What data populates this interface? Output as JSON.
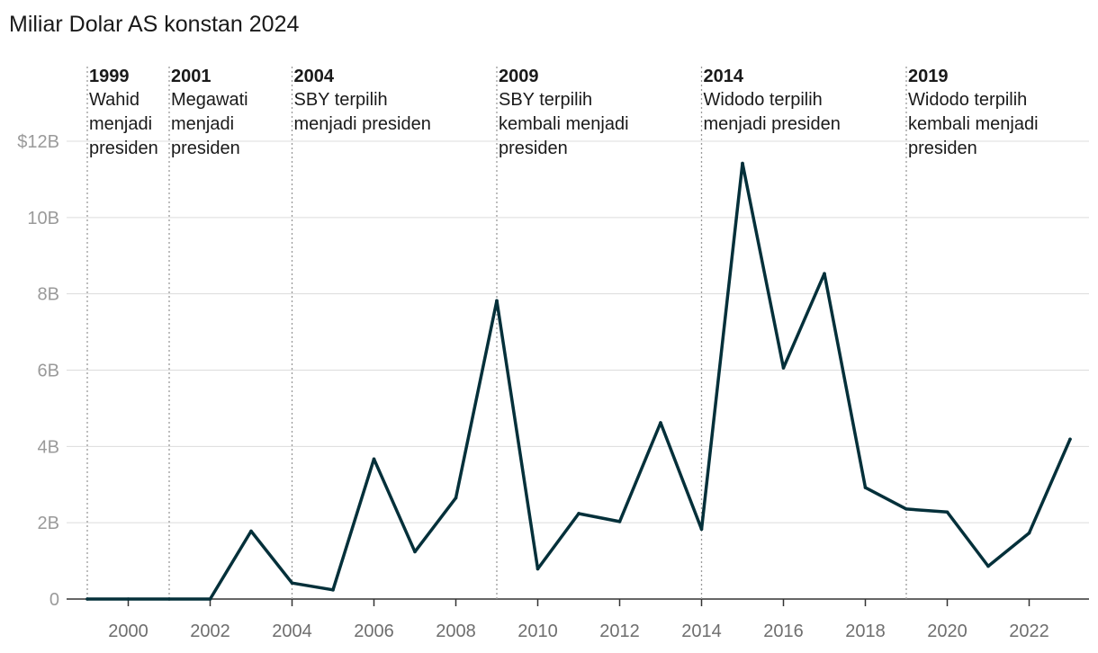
{
  "chart_data": {
    "type": "line",
    "title": "Miliar Dolar AS konstan 2024",
    "xlabel": "",
    "ylabel": "",
    "ylim": [
      0,
      12
    ],
    "xlim": [
      1999,
      2023
    ],
    "y_ticks": [
      {
        "value": 0,
        "label": "0"
      },
      {
        "value": 2,
        "label": "2B"
      },
      {
        "value": 4,
        "label": "4B"
      },
      {
        "value": 6,
        "label": "6B"
      },
      {
        "value": 8,
        "label": "8B"
      },
      {
        "value": 10,
        "label": "10B"
      },
      {
        "value": 12,
        "label": "$12B"
      }
    ],
    "x_ticks": [
      {
        "value": 2000,
        "label": "2000"
      },
      {
        "value": 2002,
        "label": "2002"
      },
      {
        "value": 2004,
        "label": "2004"
      },
      {
        "value": 2006,
        "label": "2006"
      },
      {
        "value": 2008,
        "label": "2008"
      },
      {
        "value": 2010,
        "label": "2010"
      },
      {
        "value": 2012,
        "label": "2012"
      },
      {
        "value": 2014,
        "label": "2014"
      },
      {
        "value": 2016,
        "label": "2016"
      },
      {
        "value": 2018,
        "label": "2018"
      },
      {
        "value": 2020,
        "label": "2020"
      },
      {
        "value": 2022,
        "label": "2022"
      }
    ],
    "series": [
      {
        "name": "Miliar Dolar AS konstan 2024",
        "color": "#04303a",
        "x": [
          1999,
          2000,
          2001,
          2002,
          2003,
          2004,
          2005,
          2006,
          2007,
          2008,
          2009,
          2010,
          2011,
          2012,
          2013,
          2014,
          2015,
          2016,
          2017,
          2018,
          2019,
          2020,
          2021,
          2022,
          2023
        ],
        "values": [
          0,
          0,
          0,
          0,
          1.78,
          0.42,
          0.24,
          3.67,
          1.24,
          2.65,
          7.82,
          0.79,
          2.24,
          2.03,
          4.62,
          1.83,
          11.42,
          6.06,
          8.53,
          2.92,
          2.36,
          2.28,
          0.86,
          1.73,
          4.19
        ]
      }
    ],
    "annotations": [
      {
        "x": 1999,
        "year": "1999",
        "lines": [
          "Wahid",
          "menjadi",
          "presiden"
        ]
      },
      {
        "x": 2001,
        "year": "2001",
        "lines": [
          "Megawati",
          "menjadi",
          "presiden"
        ]
      },
      {
        "x": 2004,
        "year": "2004",
        "lines": [
          "SBY terpilih",
          "menjadi presiden"
        ]
      },
      {
        "x": 2009,
        "year": "2009",
        "lines": [
          "SBY terpilih",
          "kembali menjadi",
          "presiden"
        ]
      },
      {
        "x": 2014,
        "year": "2014",
        "lines": [
          "Widodo terpilih",
          "menjadi presiden"
        ]
      },
      {
        "x": 2019,
        "year": "2019",
        "lines": [
          "Widodo terpilih",
          "kembali menjadi",
          "presiden"
        ]
      }
    ],
    "grid": true,
    "legend": "none"
  }
}
